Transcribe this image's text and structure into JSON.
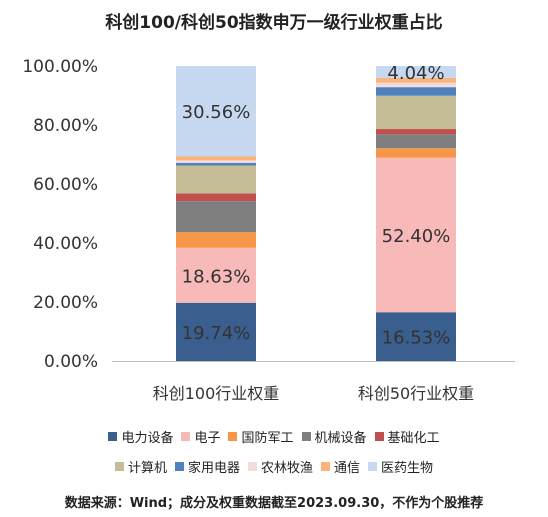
{
  "chart_data": {
    "type": "bar",
    "stacked": true,
    "title": "科创100/科创50指数申万一级行业权重占比",
    "categories": [
      "科创100行业权重",
      "科创50行业权重"
    ],
    "ylim": [
      0,
      100
    ],
    "yticks": [
      "0.00%",
      "20.00%",
      "40.00%",
      "60.00%",
      "80.00%",
      "100.00%"
    ],
    "grid": false,
    "legend_position": "bottom",
    "series": [
      {
        "name": "电力设备",
        "color": "#3a5f8f",
        "values": [
          19.74,
          16.53
        ],
        "labels": [
          "19.74%",
          "16.53%"
        ]
      },
      {
        "name": "电子",
        "color": "#f8b9b9",
        "values": [
          18.63,
          52.4
        ],
        "labels": [
          "18.63%",
          "52.40%"
        ]
      },
      {
        "name": "国防军工",
        "color": "#f79646",
        "values": [
          5.3,
          3.2
        ],
        "labels": [
          "",
          ""
        ]
      },
      {
        "name": "机械设备",
        "color": "#7f7f7f",
        "values": [
          10.5,
          4.7
        ],
        "labels": [
          "",
          ""
        ]
      },
      {
        "name": "基础化工",
        "color": "#c0504d",
        "values": [
          2.6,
          1.8
        ],
        "labels": [
          "",
          ""
        ]
      },
      {
        "name": "计算机",
        "color": "#c4bd97",
        "values": [
          9.5,
          11.3
        ],
        "labels": [
          "",
          ""
        ]
      },
      {
        "name": "家用电器",
        "color": "#4f81bd",
        "values": [
          0.9,
          2.9
        ],
        "labels": [
          "",
          ""
        ]
      },
      {
        "name": "农林牧渔",
        "color": "#f2dcdb",
        "values": [
          0.85,
          1.5
        ],
        "labels": [
          "",
          ""
        ]
      },
      {
        "name": "通信",
        "color": "#fab37b",
        "values": [
          1.42,
          1.63
        ],
        "labels": [
          "",
          ""
        ]
      },
      {
        "name": "医药生物",
        "color": "#c6d9f1",
        "values": [
          30.56,
          4.04
        ],
        "labels": [
          "30.56%",
          "4.04%"
        ]
      }
    ]
  },
  "legend_rows": [
    [
      "电力设备",
      "电子",
      "国防军工",
      "机械设备",
      "基础化工"
    ],
    [
      "计算机",
      "家用电器",
      "农林牧渔",
      "通信",
      "医药生物"
    ]
  ],
  "source_note": "数据来源：Wind；成分及权重数据截至2023.09.30，不作为个股推荐"
}
